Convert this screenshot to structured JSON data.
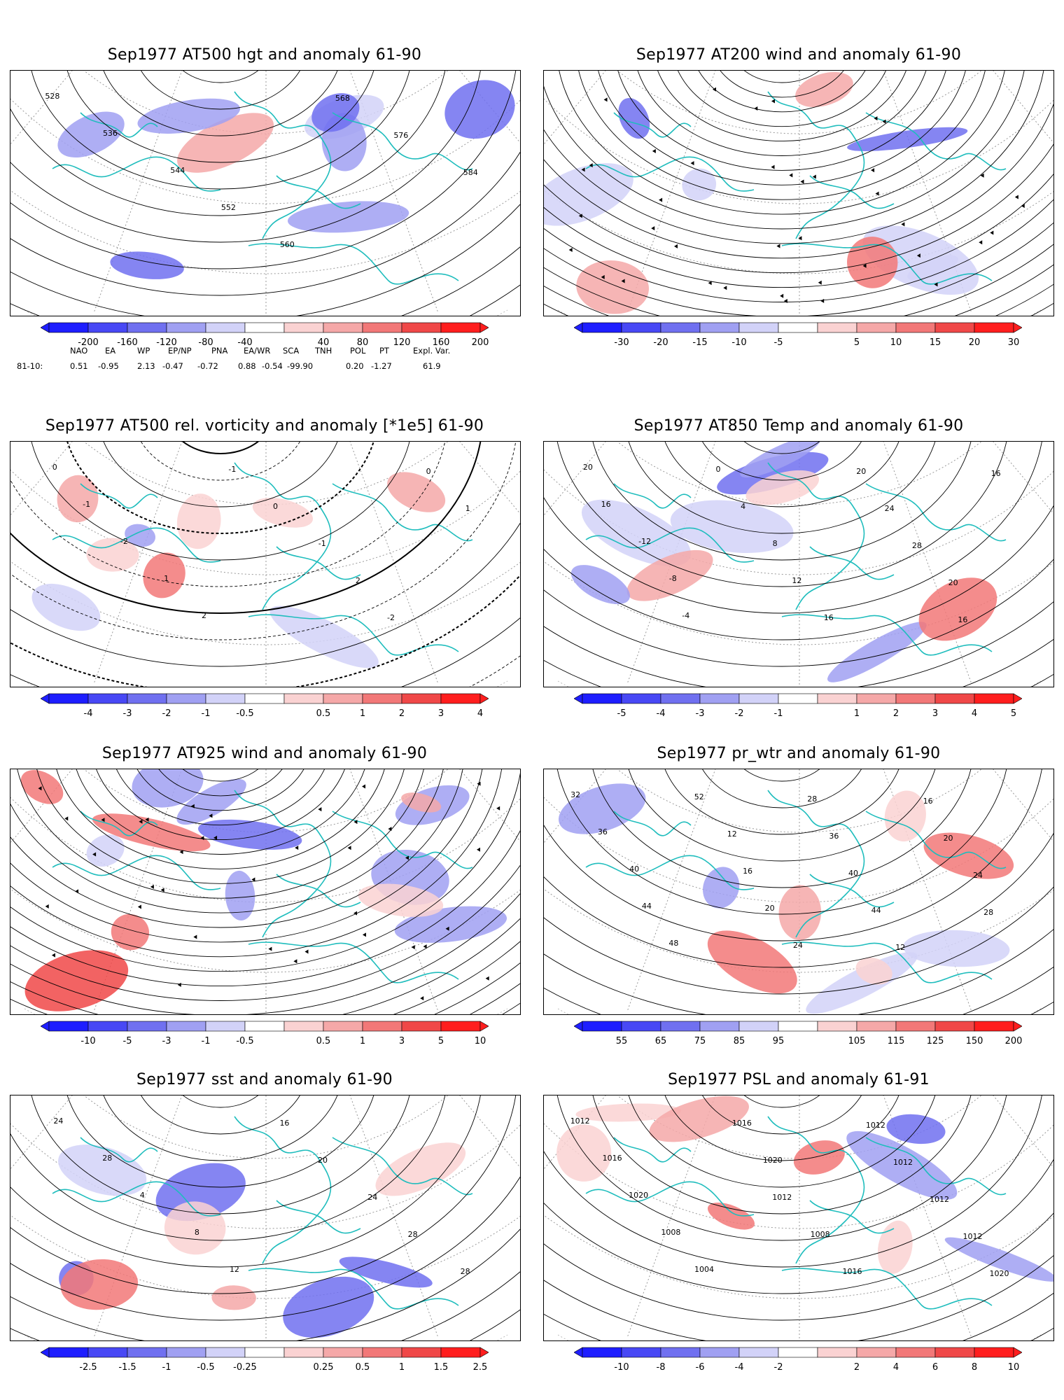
{
  "panels": [
    {
      "id": "hgt500",
      "title": "Sep1977 AT500 hgt and anomaly 61-90",
      "contour_labels": [
        "528",
        "536",
        "544",
        "552",
        "560",
        "568",
        "576",
        "584"
      ],
      "colorbar_ticks": [
        "-200",
        "-160",
        "-120",
        "-80",
        "-40",
        "40",
        "80",
        "120",
        "160",
        "200"
      ]
    },
    {
      "id": "wind200",
      "title": "Sep1977 AT200 wind and anomaly 61-90",
      "contour_labels": [],
      "colorbar_ticks": [
        "-30",
        "-20",
        "-15",
        "-10",
        "-5",
        "5",
        "10",
        "15",
        "20",
        "30"
      ]
    },
    {
      "id": "vort500",
      "title": "Sep1977 AT500 rel. vorticity and anomaly [*1e5] 61-90",
      "contour_labels": [
        "0",
        "-1",
        "-2",
        "1",
        "2",
        "-1",
        "0",
        "-1",
        "2",
        "-2",
        "0",
        "1"
      ],
      "colorbar_ticks": [
        "-4",
        "-3",
        "-2",
        "-1",
        "-0.5",
        "0.5",
        "1",
        "2",
        "3",
        "4"
      ]
    },
    {
      "id": "temp850",
      "title": "Sep1977 AT850 Temp and anomaly 61-90",
      "contour_labels": [
        "20",
        "16",
        "-12",
        "-8",
        "-4",
        "0",
        "4",
        "8",
        "12",
        "16",
        "20",
        "24",
        "28",
        "20",
        "16",
        "16"
      ],
      "colorbar_ticks": [
        "-5",
        "-4",
        "-3",
        "-2",
        "-1",
        "1",
        "2",
        "3",
        "4",
        "5"
      ]
    },
    {
      "id": "wind925",
      "title": "Sep1977 AT925 wind and anomaly 61-90",
      "contour_labels": [],
      "colorbar_ticks": [
        "-10",
        "-5",
        "-3",
        "-1",
        "-0.5",
        "0.5",
        "1",
        "3",
        "5",
        "10"
      ]
    },
    {
      "id": "prwtr",
      "title": "Sep1977 pr_wtr and anomaly 61-90",
      "contour_labels": [
        "32",
        "36",
        "40",
        "44",
        "48",
        "52",
        "12",
        "16",
        "20",
        "24",
        "28",
        "36",
        "40",
        "44",
        "12",
        "16",
        "20",
        "24",
        "28"
      ],
      "colorbar_ticks": [
        "55",
        "65",
        "75",
        "85",
        "95",
        "105",
        "115",
        "125",
        "150",
        "200"
      ]
    },
    {
      "id": "sst",
      "title": "Sep1977 sst and anomaly 61-90",
      "contour_labels": [
        "24",
        "28",
        "4",
        "8",
        "12",
        "16",
        "20",
        "24",
        "28",
        "28"
      ],
      "colorbar_ticks": [
        "-2.5",
        "-1.5",
        "-1",
        "-0.5",
        "-0.25",
        "0.25",
        "0.5",
        "1",
        "1.5",
        "2.5"
      ]
    },
    {
      "id": "psl",
      "title": "Sep1977 PSL and anomaly 61-91",
      "contour_labels": [
        "1012",
        "1016",
        "1020",
        "1008",
        "1004",
        "1016",
        "1020",
        "1012",
        "1008",
        "1016",
        "1012",
        "1012",
        "1012",
        "1012",
        "1020"
      ],
      "colorbar_ticks": [
        "-10",
        "-8",
        "-6",
        "-4",
        "-2",
        "2",
        "4",
        "6",
        "8",
        "10"
      ]
    }
  ],
  "teleconnections": {
    "headers": [
      "NAO",
      "EA",
      "WP",
      "EP/NP",
      "PNA",
      "EA/WR",
      "SCA",
      "TNH",
      "POL",
      "PT",
      "Expl. Var."
    ],
    "row_label": "81-10:",
    "values": [
      "0.51",
      "-0.95",
      "2.13",
      "-0.47",
      "-0.72",
      "0.88",
      "-0.54",
      "-99.90",
      "0.20",
      "-1.27",
      "61.9"
    ]
  },
  "colors": {
    "blue_scale": [
      "#1e1eff",
      "#4848f5",
      "#7070f0",
      "#a0a0f2",
      "#d2d2f8"
    ],
    "red_scale": [
      "#fad2d2",
      "#f5a8a8",
      "#f27878",
      "#f04848",
      "#ff1e1e"
    ],
    "coastline": "#1fbdbd",
    "contour": "#000000",
    "graticule": "#999999"
  }
}
